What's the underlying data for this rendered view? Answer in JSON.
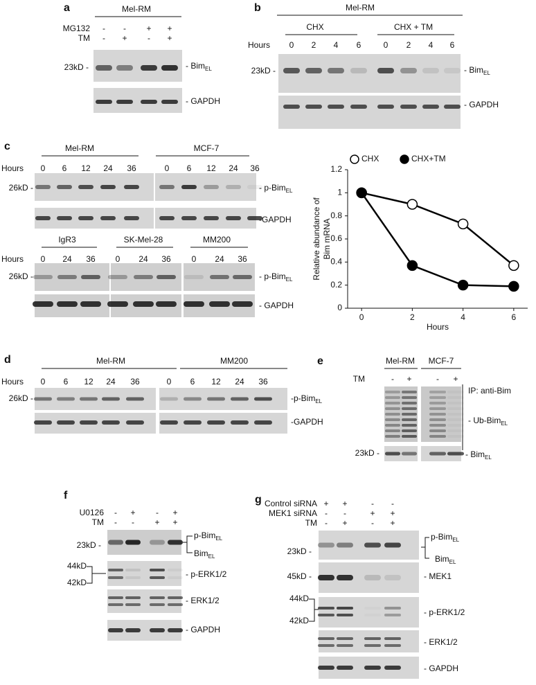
{
  "a": {
    "letter": "a",
    "group": "Mel-RM",
    "rows": [
      {
        "label": "MG132",
        "marks": [
          "-",
          "-",
          "+",
          "+"
        ]
      },
      {
        "label": "TM",
        "marks": [
          "-",
          "+",
          "-",
          "+"
        ]
      }
    ],
    "size": "23kD -",
    "bands": [
      {
        "label": "- Bim",
        "sub": "EL"
      },
      {
        "label": "- GAPDH"
      }
    ]
  },
  "b": {
    "letter": "b",
    "group": "Mel-RM",
    "subgroups": [
      "CHX",
      "CHX + TM"
    ],
    "hours_label": "Hours",
    "hours": [
      0,
      2,
      4,
      6,
      0,
      2,
      4,
      6
    ],
    "size": "23kD -",
    "bands": [
      {
        "label": "- Bim",
        "sub": "EL"
      },
      {
        "label": "- GAPDH"
      }
    ]
  },
  "c": {
    "letter": "c",
    "top": {
      "groups": [
        "Mel-RM",
        "MCF-7"
      ],
      "hours_label": "Hours",
      "hours": [
        0,
        6,
        12,
        24,
        36,
        0,
        6,
        12,
        24,
        36
      ],
      "size": "26kD -",
      "bands": [
        {
          "label": "- p-Bim",
          "sub": "EL"
        },
        {
          "label": "-GAPDH"
        }
      ]
    },
    "bottom": {
      "groups": [
        "IgR3",
        "SK-Mel-28",
        "MM200"
      ],
      "hours_label": "Hours",
      "hours": [
        0,
        24,
        36,
        0,
        24,
        36,
        0,
        24,
        36
      ],
      "size": "26kD -",
      "bands": [
        {
          "label": "- p-Bim",
          "sub": "EL"
        },
        {
          "label": "- GAPDH"
        }
      ]
    }
  },
  "chart_data": {
    "type": "line",
    "x": [
      0,
      2,
      4,
      6
    ],
    "xlim": [
      -0.55,
      6.55
    ],
    "xticks": [
      0,
      2,
      4,
      6
    ],
    "ylim": [
      0,
      1.2
    ],
    "yticks": [
      0,
      0.2,
      0.4,
      0.6,
      0.8,
      1,
      1.2
    ],
    "x_label": "Hours",
    "y_label": [
      "Relative abundance of",
      "Bim mRNA"
    ],
    "legend": "top",
    "series": [
      {
        "name": "CHX",
        "color": "#000000",
        "marker_fill": "#ffffff",
        "values": [
          1,
          0.9,
          0.73,
          0.37
        ]
      },
      {
        "name": "CHX+TM",
        "color": "#000000",
        "marker_fill": "#000000",
        "values": [
          1,
          0.37,
          0.2,
          0.19
        ]
      }
    ]
  },
  "d": {
    "letter": "d",
    "groups": [
      "Mel-RM",
      "MM200"
    ],
    "hours_label": "Hours",
    "hours": [
      0,
      6,
      12,
      24,
      36,
      0,
      6,
      12,
      24,
      36
    ],
    "size": "26kD -",
    "bands": [
      {
        "label": "-p-Bim",
        "sub": "EL"
      },
      {
        "label": "-GAPDH"
      }
    ]
  },
  "e": {
    "letter": "e",
    "groups": [
      "Mel-RM",
      "MCF-7"
    ],
    "rows": [
      {
        "label": "TM",
        "marks": [
          "-",
          "+",
          "-",
          "+"
        ]
      }
    ],
    "note": "IP: anti-Bim",
    "size": "23kD -",
    "bands": [
      {
        "label": "- Ub-Bim",
        "sub": "EL"
      },
      {
        "label": "- Bim",
        "sub": "EL"
      }
    ]
  },
  "f": {
    "letter": "f",
    "rows": [
      {
        "label": "U0126",
        "marks": [
          "-",
          "+",
          "-",
          "+"
        ]
      },
      {
        "label": "TM",
        "marks": [
          "-",
          "-",
          "+",
          "+"
        ]
      }
    ],
    "sizes": [
      "23kD -",
      "44kD",
      "42kD"
    ],
    "bands": [
      {
        "label": "p-Bim",
        "sub": "EL"
      },
      {
        "label": "Bim",
        "sub": "EL"
      },
      {
        "label": "- p-ERK1/2"
      },
      {
        "label": "- ERK1/2"
      },
      {
        "label": "- GAPDH"
      }
    ]
  },
  "g": {
    "letter": "g",
    "rows": [
      {
        "label": "Control siRNA",
        "marks": [
          "+",
          "+",
          "-",
          "-"
        ]
      },
      {
        "label": "MEK1 siRNA",
        "marks": [
          "-",
          "-",
          "+",
          "+"
        ]
      },
      {
        "label": "TM",
        "marks": [
          "-",
          "+",
          "-",
          "+"
        ]
      }
    ],
    "sizes": [
      "23kD -",
      "45kD -",
      "44kD",
      "42kD"
    ],
    "bands": [
      {
        "label": "p-Bim",
        "sub": "EL"
      },
      {
        "label": "Bim",
        "sub": "EL"
      },
      {
        "label": "- MEK1"
      },
      {
        "label": "- p-ERK1/2"
      },
      {
        "label": "- ERK1/2"
      },
      {
        "label": "- GAPDH"
      }
    ]
  }
}
